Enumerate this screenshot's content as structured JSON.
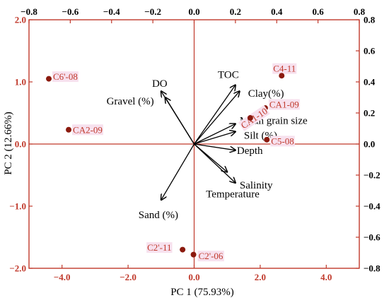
{
  "chart_data": {
    "type": "scatter",
    "subtype": "pca-biplot",
    "xlabel": "PC 1 (75.93%)",
    "ylabel": "PC 2 (12.66%)",
    "bottom_axis": {
      "range": [
        -5,
        5
      ],
      "ticks": [
        -4,
        -2,
        0,
        2,
        4
      ],
      "tick_labels": [
        "−4.0",
        "−2.0",
        "0.0",
        "2.0",
        "4.0"
      ]
    },
    "left_axis": {
      "range": [
        -2,
        2
      ],
      "ticks": [
        -2,
        -1,
        0,
        1,
        2
      ],
      "tick_labels": [
        "−2.0",
        "−1.0",
        "0.0",
        "1.0",
        "2.0"
      ]
    },
    "top_axis": {
      "range": [
        -0.8,
        0.8
      ],
      "ticks": [
        -0.8,
        -0.6,
        -0.4,
        -0.2,
        0,
        0.2,
        0.4,
        0.6,
        0.8
      ],
      "tick_labels": [
        "−0.8",
        "−0.6",
        "−0.4",
        "−0.2",
        "0.0",
        "0.2",
        "0.4",
        "0.6",
        "0.8"
      ]
    },
    "right_axis": {
      "range": [
        -0.8,
        0.8
      ],
      "ticks": [
        -0.8,
        -0.6,
        -0.4,
        -0.2,
        0,
        0.2,
        0.4,
        0.6,
        0.8
      ],
      "tick_labels": [
        "−0.8",
        "−0.6",
        "−0.4",
        "−0.2",
        "0.0",
        "0.2",
        "0.4",
        "0.6",
        "0.8"
      ]
    },
    "grid": false,
    "points": [
      {
        "label": "C6'-08",
        "x": -4.4,
        "y": 1.05
      },
      {
        "label": "CA2-09",
        "x": -3.8,
        "y": 0.23
      },
      {
        "label": "C4-11",
        "x": 2.65,
        "y": 1.1
      },
      {
        "label": "CA1-09",
        "x": 2.15,
        "y": 0.58
      },
      {
        "label": "CA1-10",
        "x": 1.7,
        "y": 0.42
      },
      {
        "label": "C5-08",
        "x": 2.2,
        "y": 0.07
      },
      {
        "label": "C2'-11",
        "x": -0.35,
        "y": -1.7
      },
      {
        "label": "C2'-06",
        "x": -0.02,
        "y": -1.78
      }
    ],
    "loadings": [
      {
        "label": "DO",
        "x": -0.16,
        "y": 0.34
      },
      {
        "label": "Gravel (%)",
        "x": -0.14,
        "y": 0.3
      },
      {
        "label": "TOC",
        "x": 0.2,
        "y": 0.38
      },
      {
        "label": "Clay(%)",
        "x": 0.22,
        "y": 0.34
      },
      {
        "label": "Mean grain size",
        "x": 0.2,
        "y": 0.13
      },
      {
        "label": "Silt (%)",
        "x": 0.2,
        "y": 0.08
      },
      {
        "label": "Depth",
        "x": 0.2,
        "y": -0.04
      },
      {
        "label": "Salinity",
        "x": 0.2,
        "y": -0.25
      },
      {
        "label": "Temperature",
        "x": 0.16,
        "y": -0.18
      },
      {
        "label": "Sand (%)",
        "x": -0.16,
        "y": -0.36
      }
    ],
    "colors": {
      "points": "#8b1a0e",
      "frame": "#c0392b",
      "point_label": "#c0392b",
      "label_highlight": "#f7e1ee",
      "arrows": "#000000",
      "axis_text": "#000000"
    }
  }
}
